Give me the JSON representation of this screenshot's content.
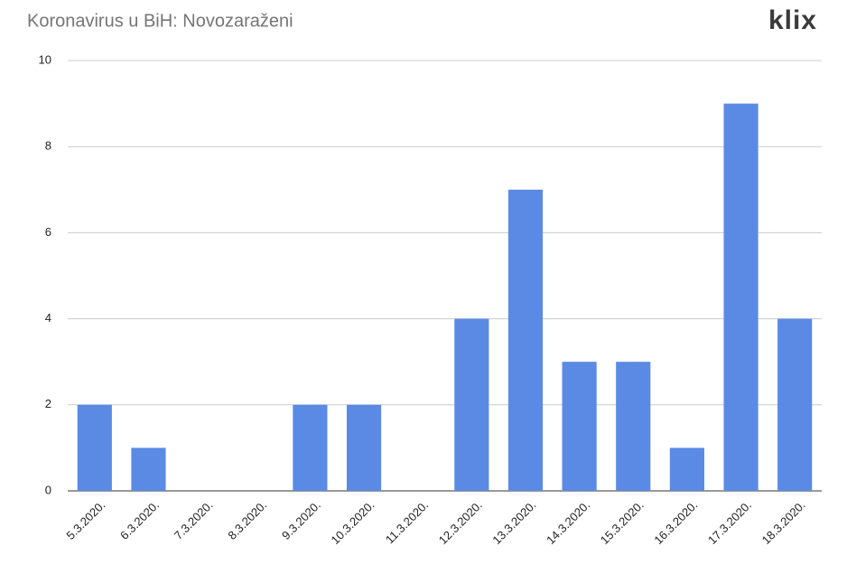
{
  "logo": "klix",
  "chart_data": {
    "type": "bar",
    "title": "Koronavirus u BiH: Novozaraženi",
    "categories": [
      "5.3.2020.",
      "6.3.2020.",
      "7.3.2020.",
      "8.3.2020.",
      "9.3.2020.",
      "10.3.2020.",
      "11.3.2020.",
      "12.3.2020.",
      "13.3.2020.",
      "14.3.2020.",
      "15.3.2020.",
      "16.3.2020.",
      "17.3.2020.",
      "18.3.2020."
    ],
    "values": [
      2,
      1,
      0,
      0,
      2,
      2,
      0,
      4,
      7,
      3,
      3,
      1,
      9,
      4
    ],
    "color": "#5b8ae5",
    "ylim": [
      0,
      10
    ],
    "yticks": [
      0,
      2,
      4,
      6,
      8,
      10
    ],
    "grid": true
  }
}
